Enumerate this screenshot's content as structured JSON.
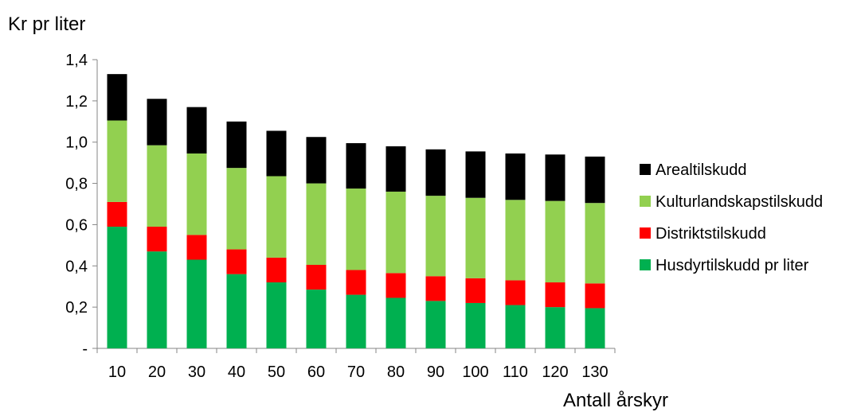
{
  "chart_data": {
    "type": "bar",
    "stacked": true,
    "title": "",
    "ylabel": "Kr pr liter",
    "xlabel": "Antall årskyr",
    "ylim": [
      0,
      1.4
    ],
    "yticks": [
      "-",
      "0,2",
      "0,4",
      "0,6",
      "0,8",
      "1,0",
      "1,2",
      "1,4"
    ],
    "categories": [
      "10",
      "20",
      "30",
      "40",
      "50",
      "60",
      "70",
      "80",
      "90",
      "100",
      "110",
      "120",
      "130"
    ],
    "series": [
      {
        "name": "Husdyrtilskudd pr liter",
        "color": "#00b050",
        "values": [
          0.59,
          0.47,
          0.43,
          0.36,
          0.32,
          0.285,
          0.26,
          0.245,
          0.23,
          0.22,
          0.21,
          0.2,
          0.195
        ]
      },
      {
        "name": "Distriktstilskudd",
        "color": "#ff0000",
        "values": [
          0.12,
          0.12,
          0.12,
          0.12,
          0.12,
          0.12,
          0.12,
          0.12,
          0.12,
          0.12,
          0.12,
          0.12,
          0.12
        ]
      },
      {
        "name": "Kulturlandskapstilskudd",
        "color": "#92d050",
        "values": [
          0.395,
          0.395,
          0.395,
          0.395,
          0.395,
          0.395,
          0.395,
          0.395,
          0.39,
          0.39,
          0.39,
          0.395,
          0.39
        ]
      },
      {
        "name": "Arealtilskudd",
        "color": "#000000",
        "values": [
          0.225,
          0.225,
          0.225,
          0.225,
          0.22,
          0.225,
          0.22,
          0.22,
          0.225,
          0.225,
          0.225,
          0.225,
          0.225
        ]
      }
    ],
    "legend_order": [
      "Arealtilskudd",
      "Kulturlandskapstilskudd",
      "Distriktstilskudd",
      "Husdyrtilskudd pr liter"
    ],
    "legend_position": "right",
    "grid": false
  }
}
